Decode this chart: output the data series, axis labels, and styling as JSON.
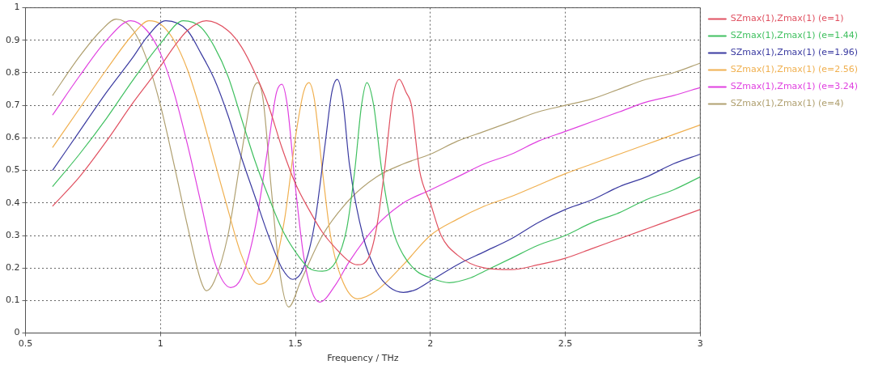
{
  "chart_data": {
    "type": "line",
    "xlabel": "Frequency / THz",
    "xlim": [
      0.5,
      3
    ],
    "xticks": [
      0.5,
      1,
      1.5,
      2,
      2.5,
      3
    ],
    "ylim": [
      0,
      1
    ],
    "yticks": [
      0,
      0.1,
      0.2,
      0.3,
      0.4,
      0.5,
      0.6,
      0.7,
      0.8,
      0.9,
      1
    ],
    "grid": true,
    "legend": "top right",
    "marker": "none",
    "line_style": "solid",
    "series": [
      {
        "name": "SZmax(1),Zmax(1) (e=1)",
        "color": "#e05060",
        "x": [
          0.6,
          0.7,
          0.8,
          0.9,
          1.0,
          1.05,
          1.1,
          1.17,
          1.25,
          1.3,
          1.35,
          1.4,
          1.45,
          1.5,
          1.55,
          1.6,
          1.65,
          1.7,
          1.73,
          1.77,
          1.8,
          1.83,
          1.86,
          1.885,
          1.91,
          1.93,
          1.96,
          2.0,
          2.04,
          2.1,
          2.2,
          2.3,
          2.4,
          2.5,
          2.6,
          2.7,
          2.8,
          2.9,
          3.0
        ],
        "values": [
          0.39,
          0.48,
          0.59,
          0.71,
          0.82,
          0.88,
          0.93,
          0.96,
          0.93,
          0.88,
          0.8,
          0.7,
          0.57,
          0.46,
          0.38,
          0.31,
          0.26,
          0.22,
          0.21,
          0.23,
          0.32,
          0.5,
          0.72,
          0.78,
          0.74,
          0.7,
          0.5,
          0.4,
          0.3,
          0.24,
          0.2,
          0.195,
          0.21,
          0.23,
          0.26,
          0.29,
          0.32,
          0.35,
          0.38
        ]
      },
      {
        "name": "SZmax(1),Zmax(1) (e=1.44)",
        "color": "#40c060",
        "x": [
          0.6,
          0.7,
          0.8,
          0.9,
          1.0,
          1.085,
          1.15,
          1.2,
          1.25,
          1.3,
          1.35,
          1.4,
          1.45,
          1.5,
          1.55,
          1.6,
          1.65,
          1.69,
          1.72,
          1.745,
          1.765,
          1.79,
          1.82,
          1.86,
          1.9,
          1.95,
          2.0,
          2.07,
          2.15,
          2.2,
          2.3,
          2.4,
          2.5,
          2.6,
          2.7,
          2.8,
          2.9,
          3.0
        ],
        "values": [
          0.45,
          0.55,
          0.66,
          0.78,
          0.89,
          0.96,
          0.94,
          0.88,
          0.79,
          0.66,
          0.53,
          0.42,
          0.32,
          0.25,
          0.2,
          0.19,
          0.22,
          0.32,
          0.5,
          0.7,
          0.77,
          0.7,
          0.5,
          0.32,
          0.24,
          0.19,
          0.17,
          0.155,
          0.17,
          0.19,
          0.23,
          0.27,
          0.3,
          0.34,
          0.37,
          0.41,
          0.44,
          0.48
        ]
      },
      {
        "name": "SZmax(1),Zmax(1) (e=1.96)",
        "color": "#3a3aa0",
        "x": [
          0.6,
          0.7,
          0.8,
          0.9,
          0.95,
          1.02,
          1.1,
          1.15,
          1.2,
          1.25,
          1.3,
          1.35,
          1.4,
          1.45,
          1.49,
          1.53,
          1.57,
          1.61,
          1.635,
          1.655,
          1.675,
          1.7,
          1.75,
          1.8,
          1.85,
          1.9,
          1.95,
          2.0,
          2.1,
          2.2,
          2.3,
          2.4,
          2.5,
          2.6,
          2.7,
          2.8,
          2.9,
          3.0
        ],
        "values": [
          0.5,
          0.62,
          0.74,
          0.85,
          0.91,
          0.96,
          0.93,
          0.86,
          0.78,
          0.67,
          0.54,
          0.42,
          0.3,
          0.2,
          0.165,
          0.2,
          0.33,
          0.58,
          0.74,
          0.78,
          0.72,
          0.52,
          0.3,
          0.19,
          0.14,
          0.125,
          0.135,
          0.16,
          0.21,
          0.25,
          0.29,
          0.34,
          0.38,
          0.41,
          0.45,
          0.48,
          0.52,
          0.55
        ]
      },
      {
        "name": "SZmax(1),Zmax(1) (e=2.56)",
        "color": "#f0b050",
        "x": [
          0.6,
          0.7,
          0.8,
          0.9,
          0.957,
          1.0,
          1.05,
          1.1,
          1.15,
          1.2,
          1.25,
          1.3,
          1.365,
          1.42,
          1.46,
          1.5,
          1.53,
          1.55,
          1.57,
          1.6,
          1.63,
          1.67,
          1.73,
          1.8,
          1.9,
          2.0,
          2.1,
          2.2,
          2.3,
          2.4,
          2.5,
          2.6,
          2.7,
          2.8,
          2.9,
          3.0
        ],
        "values": [
          0.57,
          0.69,
          0.81,
          0.92,
          0.96,
          0.95,
          0.9,
          0.81,
          0.68,
          0.53,
          0.38,
          0.24,
          0.15,
          0.2,
          0.35,
          0.6,
          0.74,
          0.77,
          0.72,
          0.5,
          0.3,
          0.17,
          0.105,
          0.13,
          0.21,
          0.3,
          0.35,
          0.39,
          0.42,
          0.455,
          0.49,
          0.52,
          0.55,
          0.58,
          0.61,
          0.64
        ]
      },
      {
        "name": "SZmax(1),Zmax(1) (e=3.24)",
        "color": "#e040e0",
        "x": [
          0.6,
          0.7,
          0.8,
          0.89,
          0.95,
          1.0,
          1.05,
          1.1,
          1.15,
          1.2,
          1.26,
          1.3,
          1.35,
          1.4,
          1.43,
          1.45,
          1.47,
          1.5,
          1.53,
          1.56,
          1.59,
          1.65,
          1.7,
          1.8,
          1.9,
          2.0,
          2.1,
          2.2,
          2.3,
          2.4,
          2.5,
          2.6,
          2.7,
          2.8,
          2.9,
          3.0
        ],
        "values": [
          0.67,
          0.79,
          0.9,
          0.96,
          0.93,
          0.86,
          0.74,
          0.58,
          0.4,
          0.22,
          0.14,
          0.17,
          0.32,
          0.58,
          0.74,
          0.765,
          0.7,
          0.45,
          0.24,
          0.13,
          0.095,
          0.15,
          0.22,
          0.33,
          0.4,
          0.44,
          0.48,
          0.52,
          0.55,
          0.59,
          0.62,
          0.65,
          0.68,
          0.71,
          0.73,
          0.755
        ]
      },
      {
        "name": "SZmax(1),Zmax(1) (e=4)",
        "color": "#b0a070",
        "x": [
          0.6,
          0.7,
          0.78,
          0.836,
          0.9,
          0.95,
          1.0,
          1.05,
          1.1,
          1.15,
          1.17,
          1.2,
          1.25,
          1.3,
          1.34,
          1.36,
          1.38,
          1.41,
          1.44,
          1.475,
          1.52,
          1.6,
          1.7,
          1.8,
          1.9,
          2.0,
          2.1,
          2.2,
          2.3,
          2.4,
          2.5,
          2.6,
          2.7,
          2.8,
          2.9,
          3.0
        ],
        "values": [
          0.73,
          0.85,
          0.93,
          0.965,
          0.93,
          0.84,
          0.7,
          0.52,
          0.33,
          0.16,
          0.13,
          0.16,
          0.3,
          0.55,
          0.74,
          0.77,
          0.72,
          0.45,
          0.2,
          0.08,
          0.16,
          0.3,
          0.41,
          0.48,
          0.52,
          0.55,
          0.59,
          0.62,
          0.65,
          0.68,
          0.7,
          0.72,
          0.75,
          0.78,
          0.8,
          0.83
        ]
      }
    ]
  }
}
